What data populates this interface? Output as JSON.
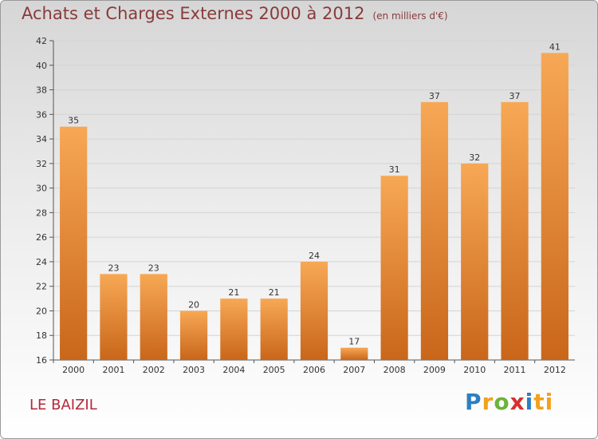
{
  "header": {
    "title": "Achats et Charges Externes 2000 à 2012",
    "subtitle": "(en milliers d'€)"
  },
  "footer": {
    "commune": "LE BAIZIL",
    "logo_letters": [
      "P",
      "r",
      "o",
      "x",
      "i",
      "ti"
    ]
  },
  "chart_data": {
    "type": "bar",
    "title": "Achats et Charges Externes 2000 à 2012",
    "subtitle": "(en milliers d'€)",
    "categories": [
      "2000",
      "2001",
      "2002",
      "2003",
      "2004",
      "2005",
      "2006",
      "2007",
      "2008",
      "2009",
      "2010",
      "2011",
      "2012"
    ],
    "values": [
      35,
      23,
      23,
      20,
      21,
      21,
      24,
      17,
      31,
      37,
      32,
      37,
      41
    ],
    "ylim": [
      16,
      42
    ],
    "yticks": [
      16,
      18,
      20,
      22,
      24,
      26,
      28,
      30,
      32,
      34,
      36,
      38,
      40,
      42
    ],
    "grid": true,
    "bar_color": "#e8862e",
    "legend": "none"
  }
}
